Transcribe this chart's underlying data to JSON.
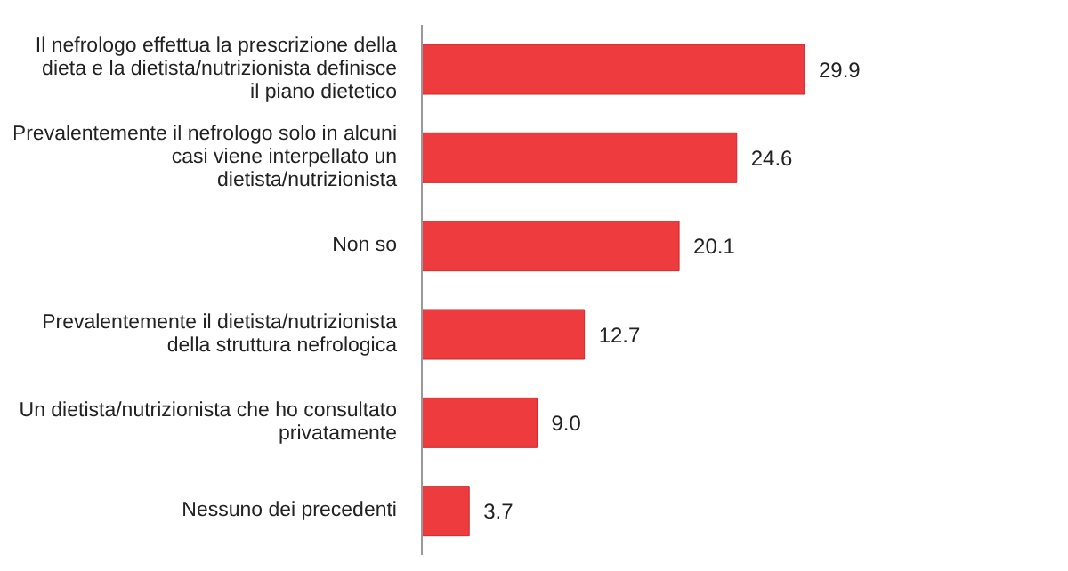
{
  "chart_data": {
    "type": "bar",
    "orientation": "horizontal",
    "categories": [
      "Il nefrologo effettua la prescrizione della dieta e la dietista/nutrizionista definisce il piano dietetico",
      "Prevalentemente il nefrologo solo in alcuni casi viene interpellato un dietista/nutrizionista",
      "Non so",
      "Prevalentemente il dietista/nutrizionista della struttura nefrologica",
      "Un dietista/nutrizionista che ho consultato privatamente",
      "Nessuno dei precedenti"
    ],
    "values": [
      29.9,
      24.6,
      20.1,
      12.7,
      9.0,
      3.7
    ],
    "value_labels": [
      "29.9",
      "24.6",
      "20.1",
      "12.7",
      "9.0",
      "3.7"
    ],
    "color": "#ee3b3d",
    "tick_labels": "y"
  }
}
